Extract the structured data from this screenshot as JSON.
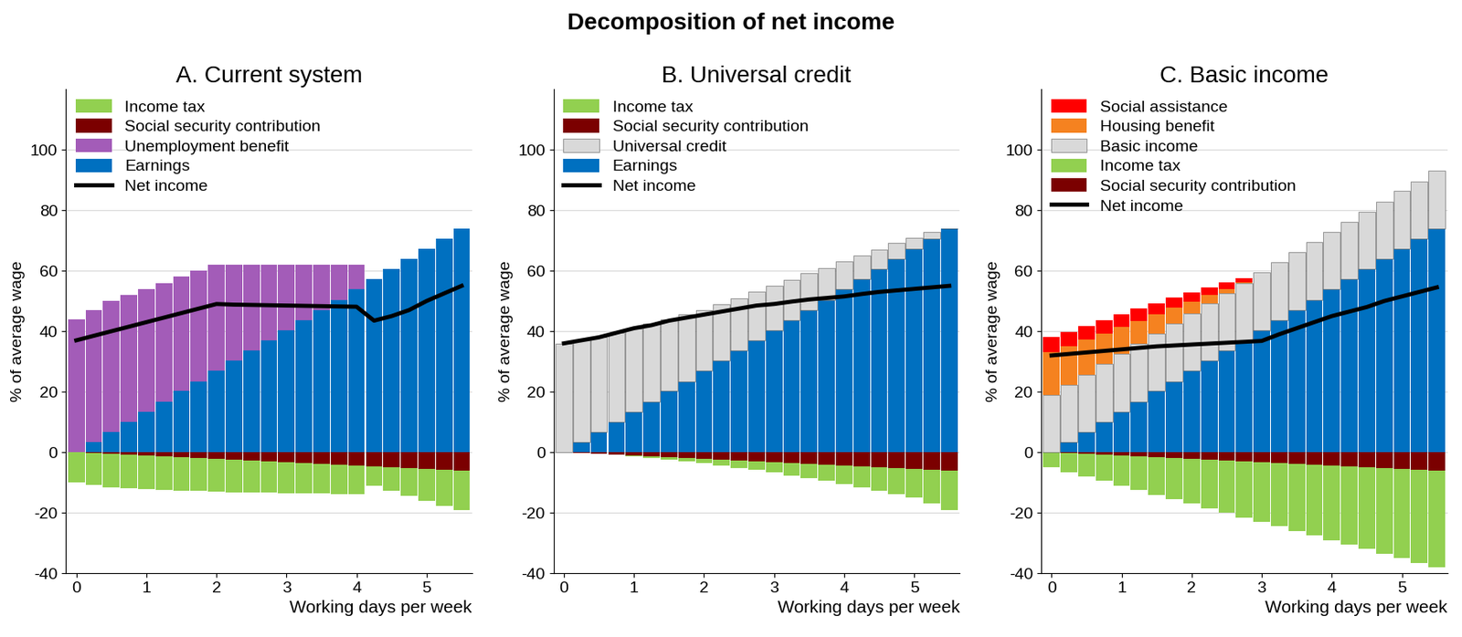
{
  "title": "Decomposition of net income",
  "chart_data": [
    {
      "type": "bar",
      "stacked": true,
      "title": "A. Current system",
      "y_label": "% of average wage",
      "x_label": "Working days per week",
      "legend": "upper left",
      "x": [
        0,
        0.25,
        0.5,
        0.75,
        1,
        1.25,
        1.5,
        1.75,
        2,
        2.25,
        2.5,
        2.75,
        3,
        3.25,
        3.5,
        3.75,
        4,
        4.25,
        4.5,
        4.75,
        5,
        5.25,
        5.5
      ],
      "xlim": [
        -0.15,
        5.65
      ],
      "xticks": [
        0,
        1,
        2,
        3,
        4,
        5
      ],
      "ylim": [
        -40,
        120
      ],
      "yticks": [
        -40,
        -20,
        0,
        20,
        40,
        60,
        80,
        100
      ],
      "series": [
        {
          "name": "Income tax",
          "color": "#92d050",
          "values": [
            -10.0,
            -10.5,
            -10.9,
            -11.2,
            -11.2,
            -11.1,
            -11.0,
            -10.9,
            -10.8,
            -10.7,
            -10.5,
            -10.4,
            -10.2,
            -9.9,
            -9.7,
            -9.6,
            -9.4,
            -6.3,
            -7.8,
            -9.3,
            -10.5,
            -12.0,
            -12.9
          ]
        },
        {
          "name": "Social security contribution",
          "color": "#7b0000",
          "values": [
            0,
            -0.3,
            -0.6,
            -0.8,
            -1.1,
            -1.4,
            -1.7,
            -1.9,
            -2.2,
            -2.5,
            -2.8,
            -3.0,
            -3.3,
            -3.6,
            -3.9,
            -4.1,
            -4.4,
            -4.7,
            -5.0,
            -5.2,
            -5.5,
            -5.8,
            -6.1
          ]
        },
        {
          "name": "Unemployment benefit",
          "color": "#a35cb8",
          "values": [
            44,
            43.6,
            43.3,
            41.9,
            40.5,
            39.2,
            37.8,
            36.5,
            35.1,
            31.7,
            28.4,
            25.0,
            21.6,
            18.3,
            14.9,
            11.6,
            8.2,
            0,
            0,
            0,
            0,
            0,
            0
          ]
        },
        {
          "name": "Earnings",
          "color": "#0070c0",
          "values": [
            0,
            3.4,
            6.7,
            10.1,
            13.5,
            16.8,
            20.2,
            23.5,
            26.9,
            30.3,
            33.6,
            37.0,
            40.4,
            43.7,
            47.1,
            50.4,
            53.8,
            57.2,
            60.5,
            63.9,
            67.3,
            70.6,
            74.0
          ]
        },
        {
          "name": "Net income",
          "type": "line",
          "color": "#000000",
          "line_style": "solid",
          "values": [
            37,
            38.5,
            40,
            41.5,
            43,
            44.5,
            46,
            47.5,
            49,
            48.8,
            48.7,
            48.6,
            48.5,
            48.4,
            48.3,
            48.2,
            48.1,
            43.5,
            45,
            47,
            50,
            52.5,
            55
          ]
        }
      ]
    },
    {
      "type": "bar",
      "stacked": true,
      "title": "B. Universal credit",
      "y_label": "% of average wage",
      "x_label": "Working days per week",
      "legend": "upper left",
      "x": [
        0,
        0.25,
        0.5,
        0.75,
        1,
        1.25,
        1.5,
        1.75,
        2,
        2.25,
        2.5,
        2.75,
        3,
        3.25,
        3.5,
        3.75,
        4,
        4.25,
        4.5,
        4.75,
        5,
        5.25,
        5.5
      ],
      "xlim": [
        -0.15,
        5.65
      ],
      "xticks": [
        0,
        1,
        2,
        3,
        4,
        5
      ],
      "ylim": [
        -40,
        120
      ],
      "yticks": [
        -40,
        -20,
        0,
        20,
        40,
        60,
        80,
        100
      ],
      "series": [
        {
          "name": "Income tax",
          "color": "#92d050",
          "values": [
            0,
            0,
            0,
            0,
            -0.2,
            -0.4,
            -0.7,
            -1.0,
            -1.4,
            -1.8,
            -2.3,
            -2.8,
            -3.4,
            -4.0,
            -4.6,
            -5.3,
            -6.0,
            -6.8,
            -7.6,
            -8.5,
            -9.5,
            -11.0,
            -12.9
          ]
        },
        {
          "name": "Social security contribution",
          "color": "#7b0000",
          "values": [
            0,
            -0.3,
            -0.6,
            -0.8,
            -1.1,
            -1.4,
            -1.7,
            -1.9,
            -2.2,
            -2.5,
            -2.8,
            -3.0,
            -3.3,
            -3.6,
            -3.9,
            -4.1,
            -4.4,
            -4.7,
            -5.0,
            -5.2,
            -5.5,
            -5.8,
            -6.1
          ]
        },
        {
          "name": "Universal credit",
          "color": "#d9d9d9",
          "values": [
            36,
            33.6,
            31.3,
            29.4,
            27.5,
            25.7,
            23.8,
            22.0,
            20.1,
            18.7,
            17.4,
            16.0,
            14.6,
            13.3,
            12.0,
            10.6,
            9.2,
            7.9,
            6.5,
            5.2,
            3.5,
            2.2,
            0
          ]
        },
        {
          "name": "Earnings",
          "color": "#0070c0",
          "values": [
            0,
            3.4,
            6.7,
            10.1,
            13.5,
            16.8,
            20.2,
            23.5,
            26.9,
            30.3,
            33.6,
            37.0,
            40.4,
            43.7,
            47.1,
            50.4,
            53.8,
            57.2,
            60.5,
            63.9,
            67.3,
            70.6,
            74.0
          ]
        },
        {
          "name": "Net income",
          "type": "line",
          "color": "#000000",
          "line_style": "solid",
          "values": [
            36,
            37,
            38,
            39.5,
            41,
            42,
            43.5,
            44.5,
            45.5,
            46.5,
            47.5,
            48.5,
            49,
            49.8,
            50.5,
            51,
            51.5,
            52.3,
            53,
            53.5,
            54,
            54.5,
            55
          ]
        }
      ]
    },
    {
      "type": "bar",
      "stacked": true,
      "title": "C. Basic income",
      "y_label": "% of average wage",
      "x_label": "Working days per week",
      "legend": "upper left",
      "x": [
        0,
        0.25,
        0.5,
        0.75,
        1,
        1.25,
        1.5,
        1.75,
        2,
        2.25,
        2.5,
        2.75,
        3,
        3.25,
        3.5,
        3.75,
        4,
        4.25,
        4.5,
        4.75,
        5,
        5.25,
        5.5
      ],
      "xlim": [
        -0.15,
        5.65
      ],
      "xticks": [
        0,
        1,
        2,
        3,
        4,
        5
      ],
      "ylim": [
        -40,
        120
      ],
      "yticks": [
        -40,
        -20,
        0,
        20,
        40,
        60,
        80,
        100
      ],
      "series": [
        {
          "name": "Social assistance",
          "color": "#ff0000",
          "values": [
            5,
            4.8,
            4.6,
            4.4,
            4.2,
            4.0,
            3.7,
            3.4,
            3.1,
            2.7,
            2.2,
            1.5,
            0,
            0,
            0,
            0,
            0,
            0,
            0,
            0,
            0,
            0,
            0
          ]
        },
        {
          "name": "Housing benefit",
          "color": "#f58220",
          "values": [
            14,
            12.7,
            11.5,
            10.2,
            9.0,
            7.7,
            6.4,
            5.2,
            3.9,
            2.6,
            1.4,
            0.1,
            0,
            0,
            0,
            0,
            0,
            0,
            0,
            0,
            0,
            0,
            0
          ]
        },
        {
          "name": "Basic income",
          "color": "#d9d9d9",
          "values": [
            19,
            19,
            19,
            19,
            19,
            19,
            19,
            19,
            19,
            19,
            19,
            19,
            19,
            19,
            19,
            19,
            19,
            19,
            19,
            19,
            19,
            19,
            19
          ]
        },
        {
          "name": "Income tax",
          "color": "#92d050",
          "values": [
            -5.0,
            -6.2,
            -7.4,
            -8.7,
            -9.9,
            -11.1,
            -12.3,
            -13.6,
            -14.8,
            -16.0,
            -17.2,
            -18.5,
            -19.7,
            -20.9,
            -22.1,
            -23.4,
            -24.6,
            -25.8,
            -27.0,
            -28.3,
            -29.5,
            -30.7,
            -31.9
          ]
        },
        {
          "name": "Social security contribution",
          "color": "#7b0000",
          "values": [
            0,
            -0.3,
            -0.6,
            -0.8,
            -1.1,
            -1.4,
            -1.7,
            -1.9,
            -2.2,
            -2.5,
            -2.8,
            -3.0,
            -3.3,
            -3.6,
            -3.9,
            -4.1,
            -4.4,
            -4.7,
            -5.0,
            -5.2,
            -5.5,
            -5.8,
            -6.1
          ]
        },
        {
          "name": null,
          "color": "#0070c0",
          "values": [
            0,
            3.4,
            6.7,
            10.1,
            13.5,
            16.8,
            20.2,
            23.5,
            26.9,
            30.3,
            33.6,
            37.0,
            40.4,
            43.7,
            47.1,
            50.4,
            53.8,
            57.2,
            60.5,
            63.9,
            67.3,
            70.6,
            74.0
          ]
        },
        {
          "name": "Net income",
          "type": "line",
          "color": "#000000",
          "line_style": "solid",
          "values": [
            32,
            32.5,
            33,
            33.5,
            34,
            34.5,
            35,
            35.3,
            35.6,
            35.9,
            36.2,
            36.5,
            36.8,
            39,
            41,
            43,
            45,
            46.5,
            48,
            50,
            51.5,
            53,
            54.5
          ]
        }
      ]
    }
  ]
}
